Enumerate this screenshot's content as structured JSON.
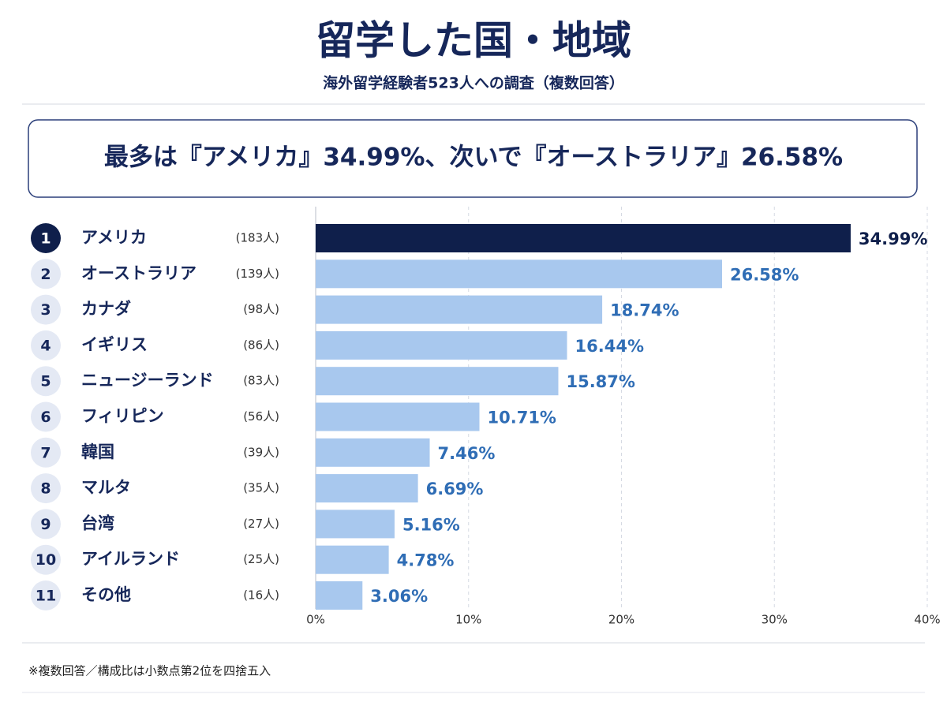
{
  "chart_data": {
    "type": "bar",
    "orientation": "horizontal",
    "title": "留学した国・地域",
    "subtitle": "海外留学経験者523人への調査（複数回答）",
    "highlight": "最多は『アメリカ』34.99%、次いで『オーストラリア』26.58%",
    "ranks": [
      "1",
      "2",
      "3",
      "4",
      "5",
      "6",
      "7",
      "8",
      "9",
      "10",
      "11"
    ],
    "categories": [
      "アメリカ",
      "オーストラリア",
      "カナダ",
      "イギリス",
      "ニュージーランド",
      "フィリピン",
      "韓国",
      "マルタ",
      "台湾",
      "アイルランド",
      "その他"
    ],
    "count_labels": [
      "(183人)",
      "(139人)",
      "(98人)",
      "(86人)",
      "(83人)",
      "(56人)",
      "(39人)",
      "(35人)",
      "(27人)",
      "(25人)",
      "(16人)"
    ],
    "values": [
      34.99,
      26.58,
      18.74,
      16.44,
      15.87,
      10.71,
      7.46,
      6.69,
      5.16,
      4.78,
      3.06
    ],
    "value_labels": [
      "34.99%",
      "26.58%",
      "18.74%",
      "16.44%",
      "15.87%",
      "10.71%",
      "7.46%",
      "6.69%",
      "5.16%",
      "4.78%",
      "3.06%"
    ],
    "colors": [
      "#0f1f4b",
      "#a8c8ee",
      "#a8c8ee",
      "#a8c8ee",
      "#a8c8ee",
      "#a8c8ee",
      "#a8c8ee",
      "#a8c8ee",
      "#a8c8ee",
      "#a8c8ee",
      "#a8c8ee"
    ],
    "label_colors": [
      "#0f1f4b",
      "#2f6db5",
      "#2f6db5",
      "#2f6db5",
      "#2f6db5",
      "#2f6db5",
      "#2f6db5",
      "#2f6db5",
      "#2f6db5",
      "#2f6db5",
      "#2f6db5"
    ],
    "xlim": [
      0,
      40
    ],
    "xticks": [
      {
        "value": 0,
        "label": "0%"
      },
      {
        "value": 10,
        "label": "10%"
      },
      {
        "value": 20,
        "label": "20%"
      },
      {
        "value": 30,
        "label": "30%"
      },
      {
        "value": 40,
        "label": "40%"
      }
    ],
    "grid": true,
    "note": "※複数回答／構成比は小数点第2位を四捨五入"
  }
}
